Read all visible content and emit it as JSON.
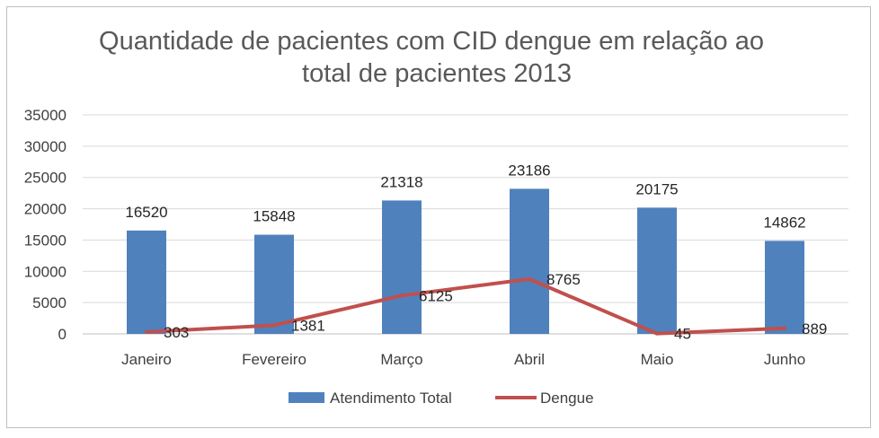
{
  "chart_data": {
    "type": "bar",
    "title_lines": [
      "Quantidade de pacientes com CID dengue em relação ao",
      "total de pacientes 2013"
    ],
    "categories": [
      "Janeiro",
      "Fevereiro",
      "Março",
      "Abril",
      "Maio",
      "Junho"
    ],
    "series": [
      {
        "name": "Atendimento Total",
        "type": "bar",
        "color": "#4f81bd",
        "values": [
          16520,
          15848,
          21318,
          23186,
          20175,
          14862
        ]
      },
      {
        "name": "Dengue",
        "type": "line",
        "color": "#c0504d",
        "values": [
          303,
          1381,
          6125,
          8765,
          45,
          889
        ]
      }
    ],
    "ylim": [
      0,
      35000
    ],
    "yticks": [
      "0",
      "5000",
      "10000",
      "15000",
      "20000",
      "25000",
      "30000",
      "35000"
    ],
    "grid": true,
    "legend": "bottom"
  }
}
